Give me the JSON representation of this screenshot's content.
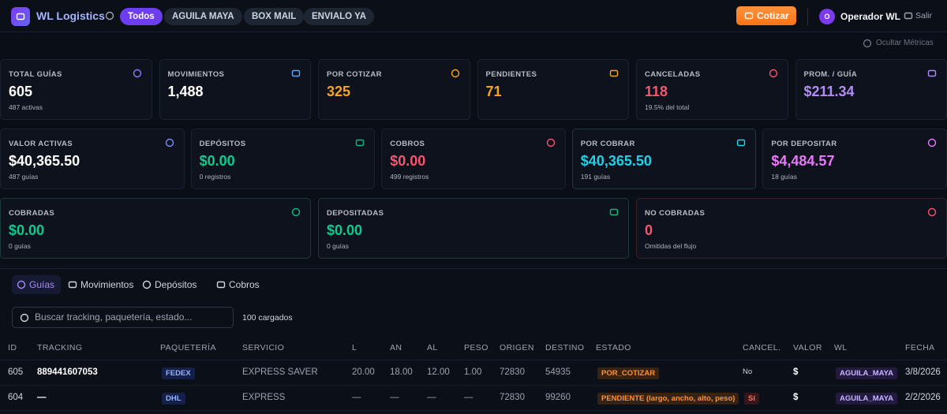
{
  "header": {
    "brand": "WL Logistics",
    "filters": [
      "Todos",
      "AGUILA MAYA",
      "BOX MAIL",
      "ENVIALO YA"
    ],
    "quote_button": "Cotizar",
    "user_initial": "O",
    "user": "Operador WL",
    "logout": "Salir"
  },
  "toggle_metrics": "Ocultar Métricas",
  "metrics": [
    [
      {
        "label": "TOTAL GUÍAS",
        "value": "605",
        "note": "487 activas"
      },
      {
        "label": "MOVIMIENTOS",
        "value": "1,488"
      },
      {
        "label": "POR COTIZAR",
        "value": "325"
      },
      {
        "label": "PENDIENTES",
        "value": "71"
      },
      {
        "label": "CANCELADAS",
        "value": "118",
        "note": "19.5% del total"
      },
      {
        "label": "PROM. / GUÍA",
        "value": "$211.34"
      }
    ],
    [
      {
        "label": "VALOR ACTIVAS",
        "value": "$40,365.50",
        "note": "487 guías"
      },
      {
        "label": "DEPÓSITOS",
        "value": "$0.00",
        "note": "0 registros"
      },
      {
        "label": "COBROS",
        "value": "$0.00",
        "note": "499 registros"
      },
      {
        "label": "POR COBRAR",
        "value": "$40,365.50",
        "note": "191 guías"
      },
      {
        "label": "POR DEPOSITAR",
        "value": "$4,484.57",
        "note": "18 guías"
      }
    ],
    [
      {
        "label": "COBRADAS",
        "value": "$0.00",
        "note": "0 guías"
      },
      {
        "label": "DEPOSITADAS",
        "value": "$0.00",
        "note": "0 guías"
      },
      {
        "label": "NO COBRADAS",
        "value": "0",
        "note": "Omitidas del flujo"
      }
    ]
  ],
  "tabs": [
    "Guías",
    "Movimientos",
    "Depósitos",
    "Cobros"
  ],
  "search_placeholder": "Buscar tracking, paquetería, estado...",
  "loaded": "100 cargados",
  "table": {
    "columns": [
      "ID",
      "TRACKING",
      "PAQUETERÍA",
      "SERVICIO",
      "L",
      "AN",
      "AL",
      "PESO",
      "ORIGEN",
      "DESTINO",
      "ESTADO",
      "CANCEL.",
      "VALOR",
      "WL",
      "FECHA"
    ],
    "rows": [
      [
        "605",
        "889441607053",
        "FEDEX",
        "EXPRESS SAVER",
        "20.00",
        "18.00",
        "12.00",
        "1.00",
        "72830",
        "54935",
        "POR_COTIZAR",
        "No",
        "$",
        "AGUILA_MAYA",
        "3/8/2026"
      ],
      [
        "604",
        "—",
        "DHL",
        "EXPRESS",
        "—",
        "—",
        "—",
        "—",
        "72830",
        "99260",
        "PENDIENTE (largo, ancho, alto, peso)",
        "Sí",
        "$",
        "AGUILA_MAYA",
        "2/2/2026"
      ]
    ]
  }
}
